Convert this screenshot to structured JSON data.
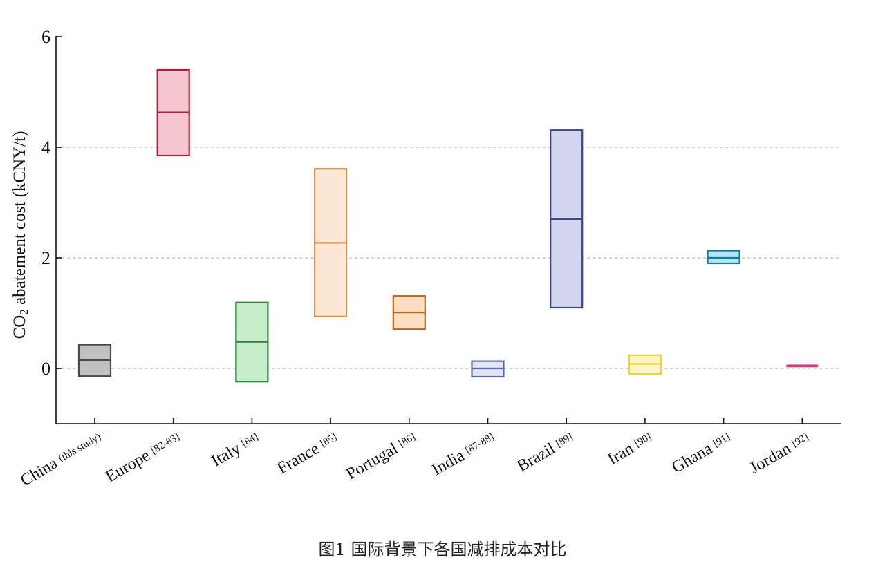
{
  "chart_data": {
    "type": "floating-bar",
    "title": "",
    "caption": "图1 国际背景下各国减排成本对比",
    "xlabel": "",
    "ylabel": "CO2 abatement cost (kCNY/t)",
    "ylabel_parts": {
      "pre": "CO",
      "sub": "2",
      "post": " abatement cost (kCNY/t)"
    },
    "ylim": [
      -1,
      6
    ],
    "yticks": [
      0,
      2,
      4,
      6
    ],
    "grid": {
      "y": true,
      "style": "dashed",
      "values": [
        0,
        2,
        4
      ]
    },
    "categories": [
      "China (this study)",
      "Europe [82-83]",
      "Italy [84]",
      "France [85]",
      "Portugal [86]",
      "India [87-88]",
      "Brazil [89]",
      "Iran [90]",
      "Ghana [91]",
      "Jordan [92]"
    ],
    "series": [
      {
        "name": "China",
        "ref": "(this study)",
        "low": -0.14,
        "mid": 0.15,
        "high": 0.43,
        "fill": "#c0c0c0",
        "stroke": "#4a4a4a"
      },
      {
        "name": "Europe",
        "ref": "[82-83]",
        "low": 3.85,
        "mid": 4.63,
        "high": 5.4,
        "fill": "#f7c5d0",
        "stroke": "#a32436"
      },
      {
        "name": "Italy",
        "ref": "[84]",
        "low": -0.24,
        "mid": 0.48,
        "high": 1.19,
        "fill": "#c6eecb",
        "stroke": "#2e7a3c"
      },
      {
        "name": "France",
        "ref": "[85]",
        "low": 0.94,
        "mid": 2.27,
        "high": 3.61,
        "fill": "#fde6d4",
        "stroke": "#dc9040"
      },
      {
        "name": "Portugal",
        "ref": "[86]",
        "low": 0.71,
        "mid": 1.01,
        "high": 1.31,
        "fill": "#fcdcc3",
        "stroke": "#b9651a"
      },
      {
        "name": "India",
        "ref": "[87-88]",
        "low": -0.15,
        "mid": 0.0,
        "high": 0.13,
        "fill": "#e2e4f3",
        "stroke": "#5e6aa8"
      },
      {
        "name": "Brazil",
        "ref": "[89]",
        "low": 1.1,
        "mid": 2.7,
        "high": 4.31,
        "fill": "#d4d6f1",
        "stroke": "#3a4580"
      },
      {
        "name": "Iran",
        "ref": "[90]",
        "low": -0.1,
        "mid": 0.08,
        "high": 0.24,
        "fill": "#fdf4c8",
        "stroke": "#e8d441"
      },
      {
        "name": "Ghana",
        "ref": "[91]",
        "low": 1.9,
        "mid": 2.0,
        "high": 2.13,
        "fill": "#aee8f7",
        "stroke": "#1c7894"
      },
      {
        "name": "Jordan",
        "ref": "[92]",
        "low": 0.03,
        "mid": 0.05,
        "high": 0.07,
        "fill": "#d1407c",
        "stroke": "#d1407c"
      }
    ]
  }
}
